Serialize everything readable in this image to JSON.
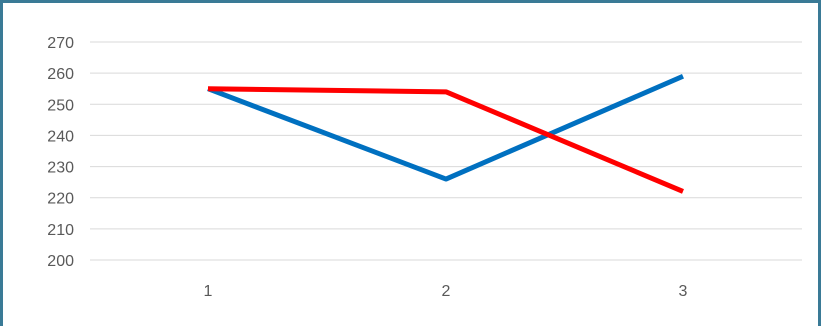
{
  "chart_data": {
    "type": "line",
    "categories": [
      "1",
      "2",
      "3"
    ],
    "series": [
      {
        "color": "#0070c0",
        "values": [
          255,
          226,
          259
        ]
      },
      {
        "color": "#ff0000",
        "values": [
          255,
          254,
          222
        ]
      }
    ],
    "ylim": [
      200,
      270
    ],
    "yticks": [
      "200",
      "210",
      "220",
      "230",
      "240",
      "250",
      "260",
      "270"
    ],
    "grid": true,
    "legend": "none",
    "title": "",
    "xlabel": "",
    "ylabel": ""
  }
}
